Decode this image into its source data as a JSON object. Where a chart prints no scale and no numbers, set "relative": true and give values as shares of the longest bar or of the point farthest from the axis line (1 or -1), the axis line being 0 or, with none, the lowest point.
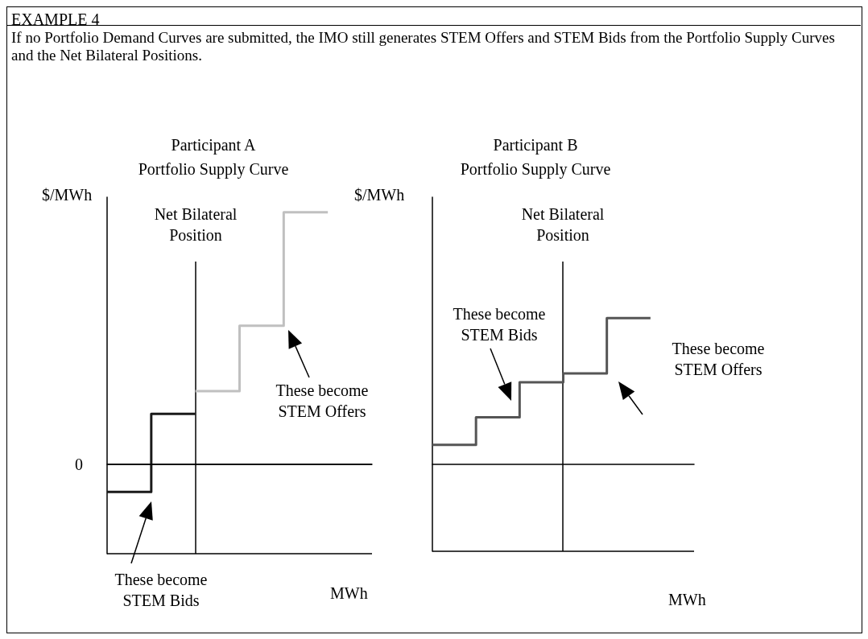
{
  "chart_data": [
    {
      "type": "step",
      "title": "Participant A\nPortfolio Supply Curve",
      "ylabel": "$/MWh",
      "xlabel": "MWh",
      "relative": true,
      "grid": false,
      "marker": "none",
      "categories": [
        null,
        null,
        null,
        null,
        null,
        null,
        null
      ],
      "series": [
        {
          "color": "#1a1a1a",
          "values": [
            -0.11,
            -0.11,
            0.2,
            null,
            null,
            null,
            null
          ]
        },
        {
          "color": "#c0c0c0",
          "values": [
            null,
            null,
            0.29,
            0.29,
            0.55,
            1,
            null
          ]
        }
      ],
      "ref_lines": [
        {
          "axis": "y",
          "value": 0,
          "label": "0"
        }
      ],
      "annotations": [
        "EXAMPLE 4",
        "If no Portfolio Demand Curves are submitted, the IMO still generates STEM Offers and STEM Bids from the Portfolio Supply Curves and the Net Bilateral Positions.",
        "These become\nSTEM Bids",
        "These become\nSTEM Offers",
        "Net Bilateral\nPosition"
      ]
    },
    {
      "type": "step",
      "title": "Participant B\nPortfolio Supply Curve",
      "ylabel": "$/MWh",
      "xlabel": "MWh",
      "relative": true,
      "grid": false,
      "marker": "none",
      "categories": [
        null,
        null,
        null,
        null,
        null,
        null,
        null
      ],
      "series": [
        {
          "color": "#555555",
          "values": [
            0.13,
            0.13,
            0.32,
            0.56,
            0.62,
            1,
            null
          ]
        }
      ],
      "annotations": [
        "These become\nSTEM Bids",
        "These become\nSTEM Offers",
        "Net Bilateral\nPosition"
      ]
    }
  ]
}
